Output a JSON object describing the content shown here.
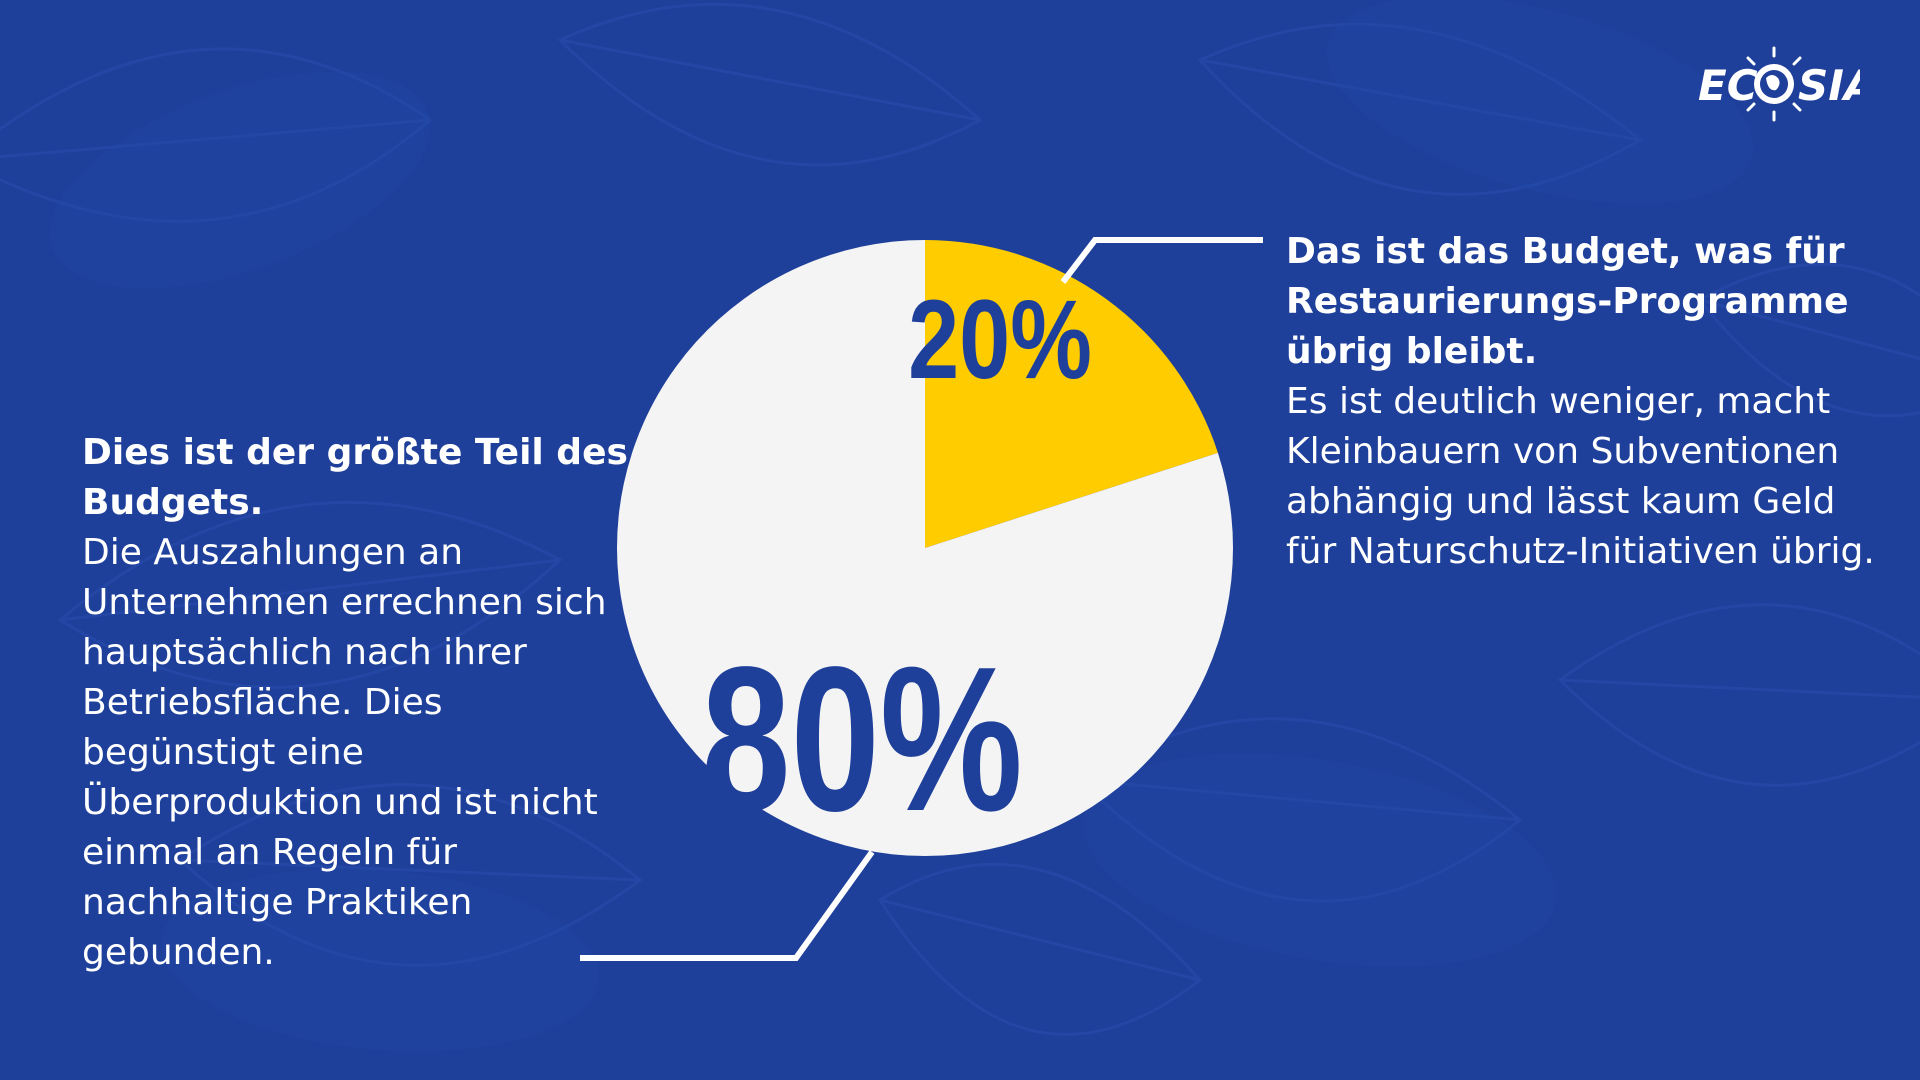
{
  "chart_data": {
    "type": "pie",
    "slices": [
      {
        "label": "20%",
        "value": 20,
        "color": "#ffcc00"
      },
      {
        "label": "80%",
        "value": 80,
        "color": "#f4f4f4"
      }
    ],
    "start_angle_deg": 0,
    "label_color": "#1e3f9a"
  },
  "left_block": {
    "heading": "Dies ist der größte Teil des Budgets.",
    "body": "Die Auszahlungen an Unternehmen errechnen sich hauptsächlich nach ihrer Betriebsfläche. Dies begünstigt eine Überproduktion und ist nicht einmal an Regeln für nachhaltige Praktiken gebunden."
  },
  "right_block": {
    "heading": "Das ist das Budget, was für Restaurierungs-Programme übrig bleibt.",
    "body": "Es ist deutlich weniger, macht Kleinbauern von Subventionen abhängig und lässt kaum Geld für Naturschutz-Initiativen übrig."
  },
  "logo": {
    "text_left": "EC",
    "text_right": "SIA",
    "icon": "globe-sun-icon"
  },
  "colors": {
    "background": "#1e3f9a",
    "accent": "#ffcc00",
    "pie_white": "#f4f4f4",
    "text": "#ffffff"
  }
}
